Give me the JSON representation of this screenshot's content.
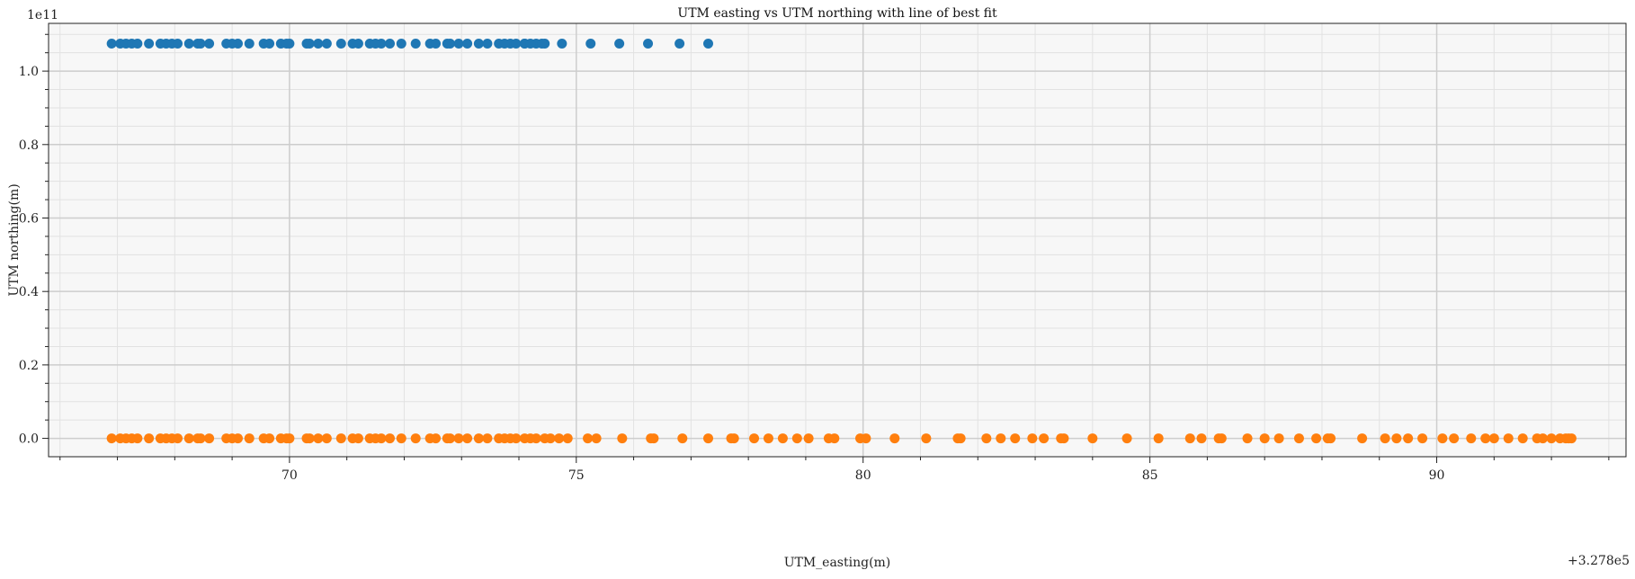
{
  "chart_data": {
    "type": "scatter",
    "title": "UTM easting vs UTM northing with line of best fit",
    "xlabel": "UTM_easting(m)",
    "ylabel": "UTM northing(m)",
    "x_offset_label": "+3.278e5",
    "y_scale_label": "1e11",
    "xlim": [
      65.8,
      93.3
    ],
    "ylim": [
      -0.05,
      1.13
    ],
    "x_major_ticks": [
      70,
      75,
      80,
      85,
      90
    ],
    "x_minor_ticks": [
      66,
      67,
      68,
      69,
      71,
      72,
      73,
      74,
      76,
      77,
      78,
      79,
      81,
      82,
      83,
      84,
      86,
      87,
      88,
      89,
      91,
      92,
      93
    ],
    "y_major_ticks": [
      0.0,
      0.2,
      0.4,
      0.6,
      0.8,
      1.0
    ],
    "y_tick_labels": [
      "0.0",
      "0.2",
      "0.4",
      "0.6",
      "0.8",
      "1.0"
    ],
    "y_minor_ticks": [
      0.05,
      0.1,
      0.15,
      0.25,
      0.3,
      0.35,
      0.45,
      0.5,
      0.55,
      0.65,
      0.7,
      0.75,
      0.85,
      0.9,
      0.95,
      1.05,
      1.1
    ],
    "grid": true,
    "background": "#f7f7f7",
    "series": [
      {
        "color": "#1f77b4",
        "y_value": 1.075,
        "x": [
          66.9,
          67.05,
          67.15,
          67.25,
          67.35,
          67.55,
          67.85,
          67.95,
          68.05,
          68.25,
          68.4,
          68.6,
          68.9,
          69.1,
          69.3,
          69.55,
          69.85,
          70.0,
          70.3,
          70.5,
          70.65,
          70.9,
          71.1,
          71.4,
          71.6,
          71.75,
          71.95,
          72.2,
          72.45,
          72.75,
          72.95,
          73.1,
          73.3,
          73.45,
          73.65,
          73.85,
          73.95,
          74.1,
          74.3,
          74.45,
          74.75,
          75.25,
          75.75,
          76.25,
          76.8,
          77.3,
          67.75,
          68.45,
          69.0,
          69.65,
          70.35,
          71.5,
          72.55,
          74.1,
          74.4,
          74.2,
          73.75,
          72.8,
          71.2,
          69.95
        ]
      },
      {
        "color": "#ff7f0e",
        "y_value": 0.0,
        "x": [
          66.9,
          67.05,
          67.15,
          67.25,
          67.35,
          67.55,
          67.85,
          67.95,
          68.05,
          68.25,
          68.4,
          68.6,
          68.9,
          69.1,
          69.3,
          69.55,
          69.85,
          70.0,
          70.3,
          70.5,
          70.65,
          70.9,
          71.1,
          71.4,
          71.6,
          71.75,
          71.95,
          72.2,
          72.45,
          72.75,
          72.95,
          73.1,
          73.3,
          73.45,
          73.65,
          73.85,
          73.95,
          74.1,
          74.3,
          74.45,
          74.55,
          74.7,
          74.85,
          75.2,
          75.35,
          75.8,
          76.35,
          76.85,
          77.3,
          77.75,
          78.1,
          78.35,
          78.6,
          78.85,
          79.05,
          79.4,
          79.95,
          80.55,
          81.1,
          81.65,
          82.15,
          82.4,
          82.65,
          82.95,
          83.15,
          83.5,
          84.0,
          84.6,
          85.15,
          85.7,
          85.9,
          86.25,
          86.7,
          87.0,
          87.25,
          87.6,
          87.9,
          88.15,
          88.7,
          89.1,
          89.3,
          89.5,
          89.75,
          90.1,
          90.3,
          90.6,
          90.85,
          91.0,
          91.25,
          91.5,
          91.75,
          92.0,
          92.15,
          92.25,
          92.35,
          67.75,
          68.45,
          69.0,
          69.65,
          70.35,
          71.5,
          72.55,
          73.75,
          74.2,
          72.8,
          71.2,
          69.95,
          76.3,
          77.7,
          79.5,
          80.05,
          81.7,
          83.45,
          86.2,
          88.1,
          91.85,
          92.3
        ]
      }
    ]
  }
}
